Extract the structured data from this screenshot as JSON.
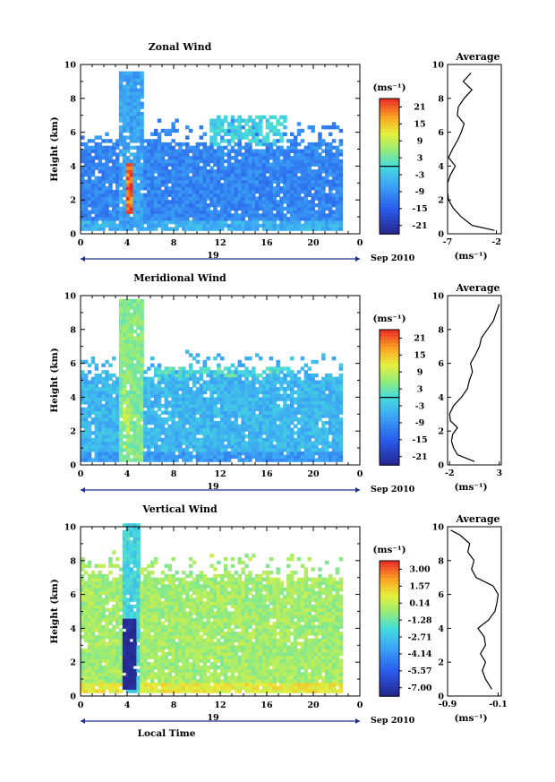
{
  "chart_data": [
    {
      "type": "heatmap",
      "title": "Zonal Wind",
      "ylabel": "Height (km)",
      "xlim": [
        0,
        24
      ],
      "ylim": [
        0,
        10
      ],
      "xticks": [
        "0",
        "4",
        "8",
        "12",
        "16",
        "20",
        "0"
      ],
      "yticks": [
        "0",
        "2",
        "4",
        "6",
        "8",
        "10"
      ],
      "day_label": "19",
      "date_label": "Sep 2010",
      "colorbar": {
        "unit": "(ms⁻¹)",
        "ticks": [
          "21",
          "15",
          "9",
          "3",
          "-3",
          "-9",
          "-15",
          "-21"
        ],
        "range": [
          -21,
          21
        ],
        "zero_line": true
      },
      "field": {
        "data_top_km": 5.2,
        "background_wind": -9,
        "near_surface_wind": -5,
        "plume": {
          "x_range": [
            3.2,
            5.2
          ],
          "top_km": 9.5,
          "wind": -6
        },
        "upper_patch": {
          "x_range": [
            11,
            17.5
          ],
          "y_range": [
            5.2,
            7.0
          ],
          "wind": -1
        },
        "warm_streak": {
          "x_range": [
            3.6,
            4.2
          ],
          "y_range": [
            1.2,
            4.2
          ],
          "wind": 18
        }
      },
      "average": {
        "title": "Average",
        "unit": "(ms⁻¹)",
        "xticks": [
          "-7",
          "-2"
        ],
        "xlim": [
          -7,
          -1.5
        ],
        "profile_height_km": [
          0.2,
          0.5,
          1.0,
          1.5,
          2.0,
          2.5,
          3.0,
          3.5,
          4.0,
          4.5,
          5.0,
          5.5,
          6.0,
          6.5,
          7.0,
          7.5,
          8.0,
          8.5,
          9.0,
          9.5
        ],
        "profile_wind": [
          -2.2,
          -4.5,
          -5.6,
          -6.4,
          -6.9,
          -7.0,
          -7.0,
          -6.7,
          -6.2,
          -6.9,
          -6.5,
          -6.0,
          -5.6,
          -5.3,
          -6.0,
          -5.9,
          -5.3,
          -4.5,
          -5.4,
          -4.6
        ]
      }
    },
    {
      "type": "heatmap",
      "title": "Meridional Wind",
      "ylabel": "Height (km)",
      "xlim": [
        0,
        24
      ],
      "ylim": [
        0,
        10
      ],
      "xticks": [
        "0",
        "4",
        "8",
        "12",
        "16",
        "20",
        "0"
      ],
      "yticks": [
        "0",
        "2",
        "4",
        "6",
        "8",
        "10"
      ],
      "day_label": "19",
      "date_label": "Sep 2010",
      "colorbar": {
        "unit": "(ms⁻¹)",
        "ticks": [
          "21",
          "15",
          "9",
          "3",
          "-3",
          "-9",
          "-15",
          "-21"
        ],
        "range": [
          -21,
          21
        ],
        "zero_line": true
      },
      "field": {
        "data_top_km": 5.2,
        "background_wind": -4,
        "near_surface_wind": -7,
        "plume": {
          "x_range": [
            3.2,
            5.2
          ],
          "top_km": 9.6,
          "wind": 4
        },
        "upper_patch": {
          "x_range": [
            6,
            18
          ],
          "y_range": [
            3.8,
            5.8
          ],
          "wind": 1
        },
        "warm_streak": {
          "x_range": [
            3.4,
            4.0
          ],
          "y_range": [
            1.0,
            4.5
          ],
          "wind": 6
        }
      },
      "average": {
        "title": "Average",
        "unit": "(ms⁻¹)",
        "xticks": [
          "-2",
          "3"
        ],
        "xlim": [
          -2.2,
          3.2
        ],
        "profile_height_km": [
          0.2,
          0.6,
          1.0,
          1.4,
          1.8,
          2.2,
          2.6,
          3.0,
          3.5,
          4.0,
          4.5,
          5.0,
          5.5,
          6.0,
          6.5,
          7.0,
          7.5,
          8.0,
          8.5,
          9.0,
          9.5
        ],
        "profile_wind": [
          0.5,
          -1.2,
          -1.6,
          -1.8,
          -1.7,
          -1.2,
          -1.9,
          -2.0,
          -1.6,
          -0.8,
          -0.2,
          0.0,
          0.3,
          0.1,
          0.6,
          1.0,
          1.2,
          1.8,
          2.4,
          2.7,
          3.0
        ]
      }
    },
    {
      "type": "heatmap",
      "title": "Vertical Wind",
      "ylabel": "Height (km)",
      "xlabel": "Local Time",
      "xlim": [
        0,
        24
      ],
      "ylim": [
        0,
        10
      ],
      "xticks": [
        "0",
        "4",
        "8",
        "12",
        "16",
        "20",
        "0"
      ],
      "yticks": [
        "0",
        "2",
        "4",
        "6",
        "8",
        "10"
      ],
      "day_label": "19",
      "date_label": "Sep 2010",
      "colorbar": {
        "unit": "(ms⁻¹)",
        "ticks": [
          "3.00",
          "1.57",
          "0.14",
          "-1.28",
          "-2.71",
          "-4.14",
          "-5.57",
          "-7.00"
        ],
        "range": [
          -7.0,
          3.0
        ],
        "zero_line": false
      },
      "field": {
        "data_top_km": 7.0,
        "background_wind": -0.6,
        "near_surface_wind": 0.4,
        "plume": {
          "x_range": [
            3.4,
            5.0
          ],
          "top_km": 10,
          "wind": -2.2
        },
        "core": {
          "x_range": [
            3.5,
            4.6
          ],
          "y_range": [
            0.4,
            4.5
          ],
          "wind": -6.8
        }
      },
      "average": {
        "title": "Average",
        "unit": "(ms⁻¹)",
        "xticks": [
          "-0.9",
          "-0.1"
        ],
        "xlim": [
          -0.9,
          -0.05
        ],
        "profile_height_km": [
          0.4,
          1.0,
          1.5,
          2.0,
          2.5,
          3.0,
          3.5,
          4.0,
          4.5,
          5.0,
          5.5,
          6.0,
          6.5,
          7.0,
          7.5,
          8.0,
          8.5,
          9.0,
          9.5,
          9.8
        ],
        "profile_wind": [
          -0.2,
          -0.3,
          -0.35,
          -0.3,
          -0.38,
          -0.3,
          -0.32,
          -0.42,
          -0.25,
          -0.15,
          -0.12,
          -0.1,
          -0.18,
          -0.45,
          -0.52,
          -0.48,
          -0.58,
          -0.55,
          -0.7,
          -0.85
        ]
      }
    }
  ]
}
